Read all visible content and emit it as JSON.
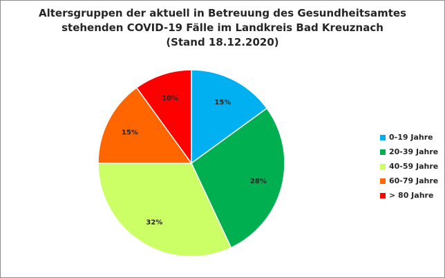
{
  "chart_data": {
    "type": "pie",
    "title_lines": [
      "Altersgruppen der aktuell in Betreuung des Gesundheitsamtes",
      "stehenden COVID-19 Fälle im Landkreis Bad Kreuznach",
      "(Stand 18.12.2020)"
    ],
    "categories": [
      "0-19 Jahre",
      "20-39 Jahre",
      "40-59 Jahre",
      "60-79 Jahre",
      "> 80 Jahre"
    ],
    "values": [
      15,
      28,
      32,
      15,
      10
    ],
    "value_labels": [
      "15%",
      "28%",
      "32%",
      "15%",
      "10%"
    ],
    "colors": [
      "#00b0f0",
      "#00b050",
      "#ccff66",
      "#ff6600",
      "#ff0000"
    ],
    "start": "12 o'clock",
    "direction": "clockwise",
    "legend_position": "right"
  }
}
